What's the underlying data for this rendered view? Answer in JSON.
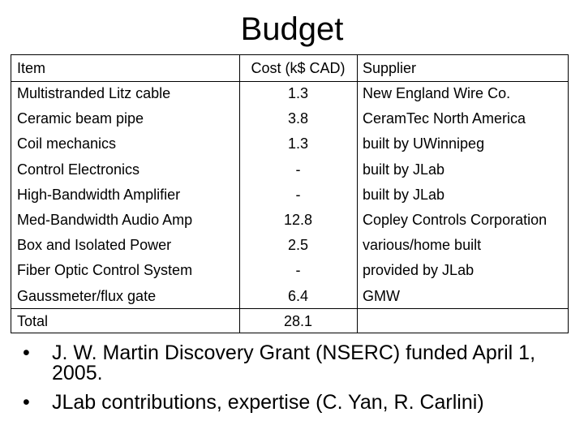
{
  "title": "Budget",
  "table": {
    "header": [
      "Item",
      "Cost (k$ CAD)",
      "Supplier"
    ],
    "rows": [
      [
        "Multistranded Litz cable",
        1.3,
        "New England Wire Co."
      ],
      [
        "Ceramic beam pipe",
        3.8,
        "CeramTec North America"
      ],
      [
        "Coil mechanics",
        1.3,
        "built by UWinnipeg"
      ],
      [
        "Control Electronics",
        "-",
        "built by JLab"
      ],
      [
        "High-Bandwidth Amplifier",
        "-",
        "built by JLab"
      ],
      [
        "Med-Bandwidth Audio Amp",
        12.8,
        "Copley Controls Corporation"
      ],
      [
        "Box and Isolated Power",
        2.5,
        "various/home built"
      ],
      [
        "Fiber Optic Control System",
        "-",
        "provided by JLab"
      ],
      [
        "Gaussmeter/flux gate",
        6.4,
        "GMW"
      ]
    ],
    "total": {
      "label": "Total",
      "cost": 28.1
    }
  },
  "bullets": [
    "J. W. Martin Discovery Grant (NSERC) funded April 1, 2005.",
    "JLab contributions, expertise (C. Yan, R. Carlini)"
  ]
}
